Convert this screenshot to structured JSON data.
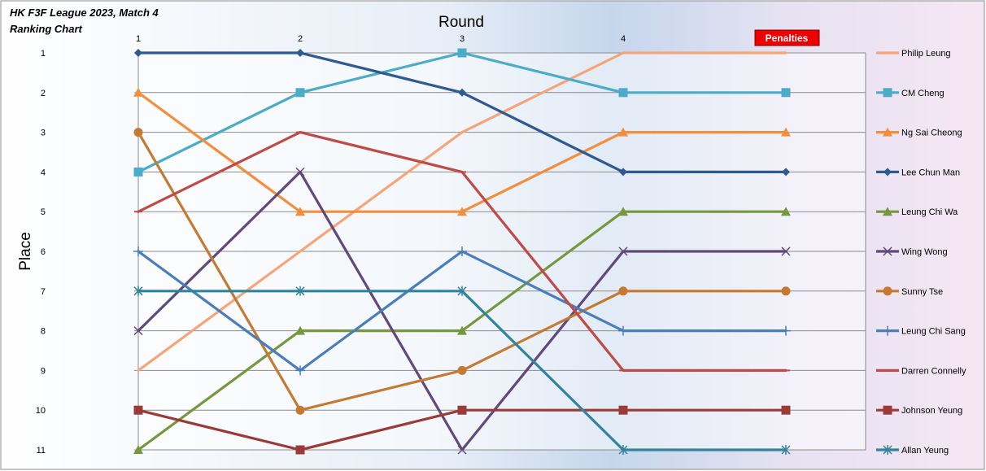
{
  "chart_data": {
    "type": "line",
    "title": "HK F3F League 2023, Match 4",
    "subtitle": "Ranking Chart",
    "xlabel": "Round",
    "ylabel": "Place",
    "x_ticks": [
      "1",
      "2",
      "3",
      "4"
    ],
    "penalties_label": "Penalties",
    "y_ticks": [
      "1",
      "2",
      "3",
      "4",
      "5",
      "6",
      "7",
      "8",
      "9",
      "10",
      "11"
    ],
    "ylim": [
      1,
      11
    ],
    "y_inverted": true,
    "grid": "horizontal",
    "legend_position": "right",
    "series": [
      {
        "name": "Philip Leung",
        "color": "#F6A57A",
        "marker": "none",
        "values": [
          9,
          6,
          3,
          1,
          1
        ]
      },
      {
        "name": "CM Cheng",
        "color": "#4AACC6",
        "marker": "square",
        "values": [
          4,
          2,
          1,
          2,
          2
        ]
      },
      {
        "name": "Ng Sai Cheong",
        "color": "#F38E3C",
        "marker": "triangle",
        "values": [
          2,
          5,
          5,
          3,
          3
        ]
      },
      {
        "name": "Lee Chun Man",
        "color": "#2F5A8F",
        "marker": "diamond",
        "values": [
          1,
          1,
          2,
          4,
          4
        ]
      },
      {
        "name": "Leung Chi Wa",
        "color": "#77973E",
        "marker": "triangle",
        "values": [
          11,
          8,
          8,
          5,
          5
        ]
      },
      {
        "name": "Wing Wong",
        "color": "#604A7B",
        "marker": "x",
        "values": [
          8,
          4,
          11,
          6,
          6
        ]
      },
      {
        "name": "Sunny Tse",
        "color": "#C47A33",
        "marker": "circle",
        "values": [
          3,
          10,
          9,
          7,
          7
        ]
      },
      {
        "name": "Leung Chi Sang",
        "color": "#4A7EBB",
        "marker": "plus",
        "values": [
          6,
          9,
          6,
          8,
          8
        ]
      },
      {
        "name": "Darren Connelly",
        "color": "#BE4B48",
        "marker": "dash",
        "values": [
          5,
          3,
          4,
          9,
          9
        ]
      },
      {
        "name": "Johnson Yeung",
        "color": "#9B3B38",
        "marker": "square",
        "values": [
          10,
          11,
          10,
          10,
          10
        ]
      },
      {
        "name": "Allan Yeung",
        "color": "#31849B",
        "marker": "star",
        "values": [
          7,
          7,
          7,
          11,
          11
        ]
      }
    ]
  }
}
